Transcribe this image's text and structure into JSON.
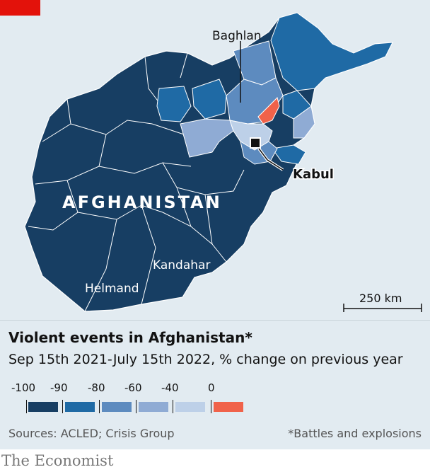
{
  "map": {
    "country_label": "AFGHANISTAN",
    "labels": {
      "baghlan": "Baghlan",
      "kabul": "Kabul",
      "kandahar": "Kandahar",
      "helmand": "Helmand"
    },
    "scale_bar": "250 km"
  },
  "legend": {
    "title": "Violent events in Afghanistan*",
    "subtitle": "Sep 15th 2021-July 15th 2022, % change on previous year",
    "ticks": [
      "-100",
      "-90",
      "-80",
      "-60",
      "-40",
      "0"
    ],
    "bins": [
      {
        "color": "#173e63"
      },
      {
        "color": "#1f6aa5"
      },
      {
        "color": "#5d8bbf"
      },
      {
        "color": "#8fabd4"
      },
      {
        "color": "#bdd0e8"
      },
      {
        "color": "#f0624a"
      }
    ]
  },
  "sources": "Sources: ACLED; Crisis Group",
  "footnote": "*Battles and explosions",
  "brand": "The Economist",
  "colors": {
    "tag": "#e3120b",
    "background": "#e2ebf1",
    "darkest": "#173e63",
    "highlight": "#f0624a"
  }
}
